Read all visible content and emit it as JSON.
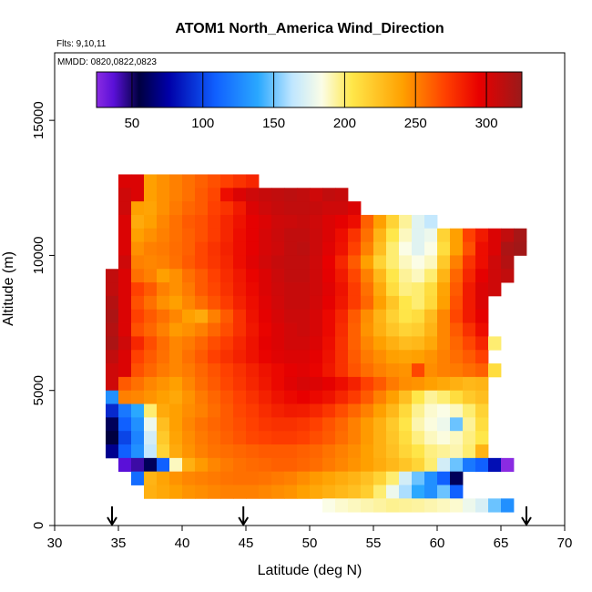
{
  "chart_data": {
    "type": "heatmap",
    "title": "ATOM1 North_America Wind_Direction",
    "flights_note": "Flts: 9,10,11",
    "dates_note": "MMDD: 0820,0822,0823",
    "xlabel": "Latitude (deg N)",
    "ylabel": "Altitude (m)",
    "xlim": [
      30,
      70
    ],
    "ylim": [
      0,
      17500
    ],
    "x_ticks": [
      "30",
      "35",
      "40",
      "45",
      "50",
      "55",
      "60",
      "65",
      "70"
    ],
    "y_ticks": [
      "0",
      "5000",
      "10000",
      "15000"
    ],
    "colorbar": {
      "range": [
        25,
        325
      ],
      "ticks": [
        "50",
        "100",
        "150",
        "200",
        "250",
        "300"
      ],
      "tick_values": [
        50,
        100,
        150,
        200,
        250,
        300
      ]
    },
    "grid": false,
    "arrows_at_latitude": [
      34.5,
      44.8,
      67
    ],
    "bins": {
      "lat_step": 1,
      "alt_step": 500,
      "rows": [
        {
          "alt": 12500,
          "lat0": 35,
          "values": [
            300,
            300,
            240,
            245,
            250,
            255,
            260,
            265,
            270,
            275,
            280
          ]
        },
        {
          "alt": 12000,
          "lat0": 35,
          "values": [
            305,
            300,
            240,
            245,
            250,
            255,
            262,
            268,
            290,
            300,
            305,
            308,
            310,
            312,
            310,
            305,
            310,
            308
          ]
        },
        {
          "alt": 11500,
          "lat0": 35,
          "values": [
            305,
            240,
            238,
            245,
            252,
            258,
            262,
            270,
            275,
            285,
            300,
            305,
            308,
            310,
            310,
            308,
            305,
            305,
            300
          ]
        },
        {
          "alt": 11000,
          "lat0": 35,
          "values": [
            300,
            235,
            240,
            248,
            255,
            262,
            265,
            272,
            280,
            288,
            296,
            300,
            305,
            306,
            308,
            305,
            300,
            296,
            290,
            260,
            240,
            215,
            195,
            175,
            165
          ]
        },
        {
          "alt": 10500,
          "lat0": 35,
          "values": [
            300,
            240,
            245,
            250,
            255,
            260,
            265,
            272,
            280,
            290,
            296,
            302,
            306,
            310,
            310,
            306,
            300,
            290,
            275,
            255,
            230,
            205,
            190,
            175,
            180,
            215,
            240,
            270,
            285,
            300,
            310,
            320
          ]
        },
        {
          "alt": 10000,
          "lat0": 35,
          "values": [
            300,
            245,
            250,
            252,
            256,
            260,
            268,
            275,
            282,
            290,
            296,
            302,
            305,
            310,
            312,
            306,
            298,
            288,
            270,
            250,
            225,
            200,
            185,
            175,
            185,
            210,
            240,
            265,
            290,
            300,
            318,
            322
          ]
        },
        {
          "alt": 9500,
          "lat0": 35,
          "values": [
            305,
            250,
            248,
            250,
            255,
            262,
            268,
            274,
            280,
            290,
            298,
            304,
            308,
            310,
            310,
            305,
            295,
            280,
            262,
            240,
            215,
            200,
            190,
            185,
            190,
            220,
            250,
            275,
            290,
            305,
            315
          ]
        },
        {
          "alt": 9000,
          "lat0": 34,
          "values": [
            310,
            300,
            255,
            250,
            240,
            245,
            255,
            262,
            270,
            278,
            286,
            294,
            300,
            306,
            310,
            310,
            305,
            296,
            285,
            268,
            250,
            228,
            205,
            195,
            190,
            200,
            230,
            258,
            280,
            296,
            305,
            310
          ]
        },
        {
          "alt": 8500,
          "lat0": 34,
          "values": [
            310,
            300,
            270,
            262,
            250,
            245,
            252,
            262,
            268,
            276,
            285,
            292,
            300,
            305,
            308,
            308,
            305,
            298,
            288,
            272,
            255,
            235,
            210,
            198,
            200,
            210,
            238,
            262,
            285,
            300,
            305
          ]
        },
        {
          "alt": 8000,
          "lat0": 34,
          "values": [
            315,
            300,
            265,
            255,
            245,
            240,
            248,
            256,
            264,
            272,
            282,
            290,
            298,
            304,
            308,
            308,
            304,
            296,
            286,
            272,
            258,
            240,
            222,
            205,
            200,
            212,
            240,
            265,
            285,
            300
          ]
        },
        {
          "alt": 7500,
          "lat0": 34,
          "values": [
            318,
            300,
            270,
            262,
            255,
            248,
            240,
            235,
            250,
            262,
            276,
            288,
            296,
            302,
            306,
            306,
            302,
            292,
            280,
            262,
            246,
            230,
            216,
            206,
            210,
            226,
            248,
            268,
            285,
            296
          ]
        },
        {
          "alt": 7000,
          "lat0": 34,
          "values": [
            315,
            300,
            265,
            258,
            250,
            242,
            245,
            250,
            258,
            266,
            276,
            286,
            294,
            300,
            304,
            306,
            302,
            292,
            278,
            260,
            244,
            232,
            222,
            215,
            218,
            230,
            248,
            262,
            276,
            290
          ]
        },
        {
          "alt": 6500,
          "lat0": 34,
          "values": [
            318,
            305,
            280,
            266,
            256,
            248,
            252,
            258,
            266,
            272,
            280,
            288,
            296,
            300,
            304,
            304,
            300,
            290,
            276,
            260,
            248,
            240,
            232,
            226,
            228,
            236,
            248,
            258,
            268,
            280,
            200
          ]
        },
        {
          "alt": 6000,
          "lat0": 34,
          "values": [
            310,
            300,
            270,
            262,
            255,
            248,
            255,
            262,
            270,
            276,
            282,
            288,
            294,
            298,
            300,
            300,
            296,
            288,
            276,
            262,
            252,
            246,
            240,
            238,
            240,
            244,
            250,
            256,
            262,
            270
          ]
        },
        {
          "alt": 5500,
          "lat0": 34,
          "values": [
            305,
            300,
            265,
            258,
            252,
            248,
            252,
            258,
            264,
            270,
            276,
            282,
            288,
            292,
            296,
            298,
            294,
            286,
            276,
            264,
            256,
            250,
            246,
            244,
            268,
            246,
            250,
            252,
            256,
            260,
            210
          ]
        },
        {
          "alt": 5000,
          "lat0": 34,
          "values": [
            305,
            262,
            255,
            248,
            244,
            240,
            248,
            256,
            262,
            268,
            274,
            280,
            286,
            292,
            298,
            302,
            300,
            296,
            290,
            282,
            270,
            262,
            252,
            246,
            244,
            240,
            236,
            232,
            228,
            230
          ]
        },
        {
          "alt": 4500,
          "lat0": 34,
          "values": [
            130,
            250,
            248,
            244,
            240,
            236,
            244,
            252,
            258,
            264,
            270,
            276,
            282,
            288,
            292,
            295,
            292,
            288,
            280,
            272,
            262,
            250,
            240,
            225,
            205,
            195,
            200,
            210,
            220,
            225
          ]
        },
        {
          "alt": 4000,
          "lat0": 34,
          "values": [
            90,
            120,
            140,
            200,
            235,
            240,
            246,
            250,
            256,
            262,
            268,
            272,
            278,
            282,
            285,
            284,
            280,
            274,
            266,
            258,
            250,
            240,
            228,
            212,
            196,
            188,
            185,
            190,
            200,
            215
          ]
        },
        {
          "alt": 3500,
          "lat0": 34,
          "values": [
            60,
            110,
            130,
            180,
            225,
            240,
            248,
            254,
            258,
            262,
            266,
            270,
            274,
            276,
            276,
            274,
            270,
            264,
            258,
            250,
            242,
            232,
            220,
            206,
            192,
            186,
            180,
            150,
            195,
            210
          ]
        },
        {
          "alt": 3000,
          "lat0": 34,
          "values": [
            55,
            100,
            125,
            170,
            220,
            238,
            246,
            252,
            256,
            260,
            264,
            268,
            270,
            272,
            272,
            270,
            266,
            262,
            256,
            250,
            242,
            232,
            222,
            210,
            198,
            190,
            186,
            190,
            198,
            205
          ]
        },
        {
          "alt": 2500,
          "lat0": 34,
          "values": [
            70,
            110,
            130,
            165,
            215,
            235,
            244,
            250,
            254,
            256,
            258,
            260,
            262,
            262,
            262,
            260,
            258,
            254,
            250,
            246,
            240,
            232,
            224,
            214,
            206,
            198,
            195,
            192,
            200,
            230
          ]
        },
        {
          "alt": 2000,
          "lat0": 35,
          "values": [
            40,
            45,
            60,
            110,
            190,
            232,
            242,
            248,
            252,
            255,
            257,
            258,
            260,
            260,
            258,
            256,
            252,
            248,
            244,
            240,
            234,
            228,
            222,
            214,
            200,
            170,
            150,
            120,
            110,
            80,
            20
          ]
        },
        {
          "alt": 1500,
          "lat0": 36,
          "values": [
            115,
            230,
            238,
            244,
            248,
            250,
            252,
            254,
            255,
            255,
            254,
            252,
            250,
            246,
            242,
            238,
            234,
            230,
            224,
            215,
            200,
            170,
            150,
            130,
            110,
            60
          ]
        },
        {
          "alt": 1000,
          "lat0": 37,
          "values": [
            232,
            236,
            240,
            244,
            246,
            248,
            250,
            250,
            250,
            248,
            246,
            244,
            240,
            236,
            232,
            228,
            224,
            218,
            200,
            180,
            160,
            140,
            130,
            150,
            110
          ]
        },
        {
          "alt": 500,
          "lat0": 51,
          "values": [
            185,
            188,
            190,
            192,
            194,
            196,
            195,
            194,
            192,
            190,
            188,
            180,
            172,
            150,
            130
          ]
        }
      ]
    }
  }
}
